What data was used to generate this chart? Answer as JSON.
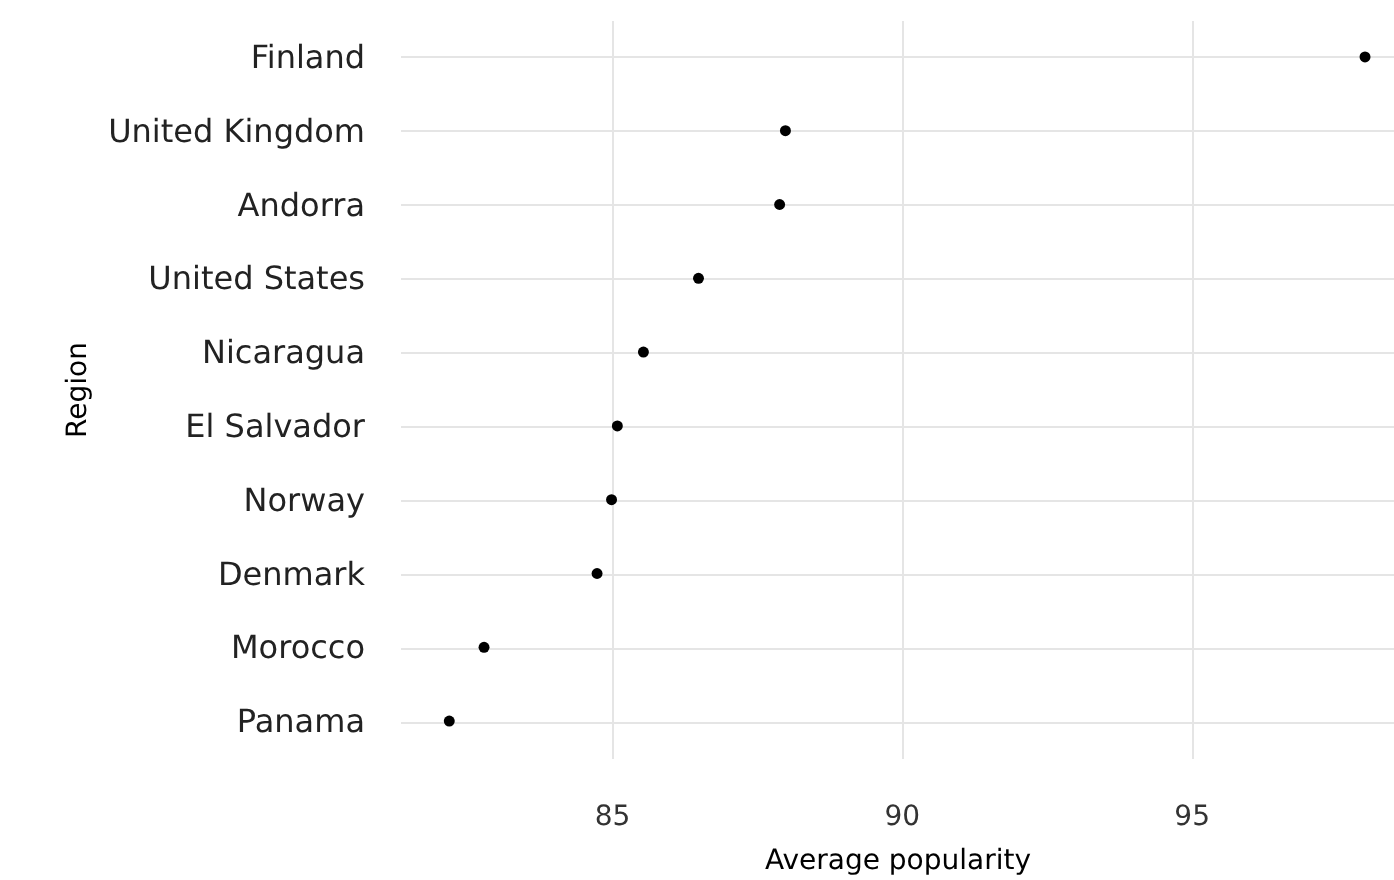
{
  "chart_data": {
    "type": "scatter",
    "xlabel": "Average popularity",
    "ylabel": "Region",
    "categories": [
      "Finland",
      "United Kingdom",
      "Andorra",
      "United States",
      "Nicaragua",
      "El Salvador",
      "Norway",
      "Denmark",
      "Morocco",
      "Panama"
    ],
    "series": [
      {
        "color": "#000000",
        "values": [
          98.0,
          88.0,
          87.9,
          86.5,
          85.55,
          85.1,
          85.0,
          84.75,
          82.8,
          82.2
        ]
      }
    ],
    "xlim": [
      81.35,
      98.5
    ],
    "xticks": [
      85,
      90,
      95
    ],
    "grid": true,
    "marker": "circle",
    "orientation": "horizontal"
  }
}
